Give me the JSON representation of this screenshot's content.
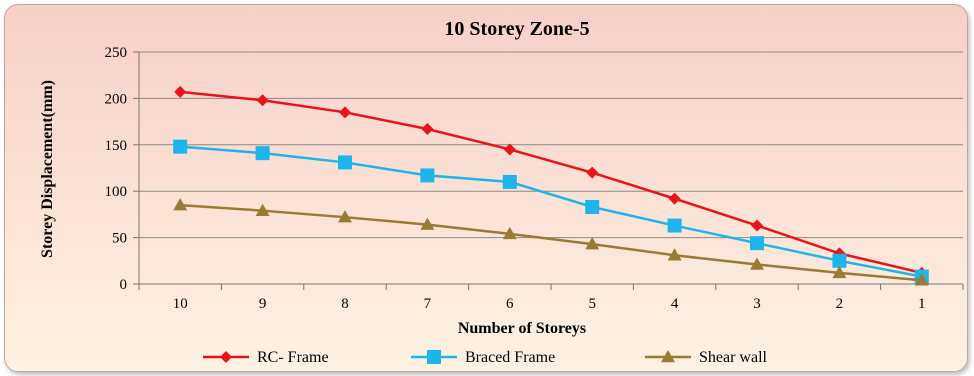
{
  "chart_data": {
    "type": "line",
    "title": "10 Storey Zone-5",
    "xlabel": "Number of Storeys",
    "ylabel": "Storey Displacement(mm)",
    "categories": [
      "10",
      "9",
      "8",
      "7",
      "6",
      "5",
      "4",
      "3",
      "2",
      "1"
    ],
    "ylim": [
      0,
      250
    ],
    "yticks": [
      0,
      50,
      100,
      150,
      200,
      250
    ],
    "grid": true,
    "legend_position": "bottom",
    "series": [
      {
        "name": "RC- Frame",
        "color": "#e8141c",
        "marker": "diamond",
        "values": [
          207,
          198,
          185,
          167,
          145,
          120,
          92,
          63,
          33,
          12
        ]
      },
      {
        "name": "Braced Frame",
        "color": "#1eb4ec",
        "marker": "square",
        "values": [
          148,
          141,
          131,
          117,
          110,
          83,
          63,
          44,
          25,
          8
        ]
      },
      {
        "name": "Shear wall",
        "color": "#9a7b35",
        "marker": "triangle",
        "values": [
          85,
          79,
          72,
          64,
          54,
          43,
          31,
          21,
          12,
          4
        ]
      }
    ]
  }
}
